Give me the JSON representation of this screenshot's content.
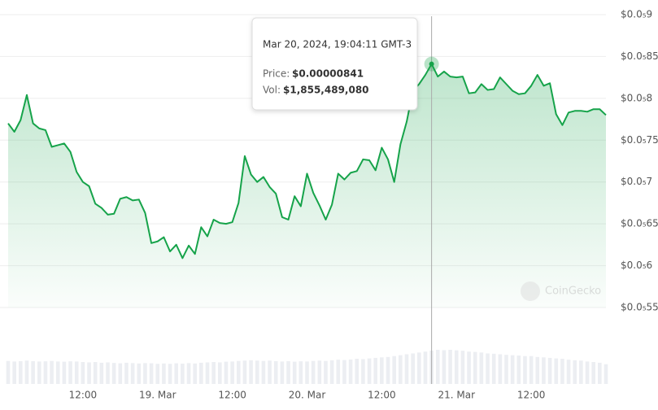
{
  "chart_data": {
    "type": "line",
    "color": "#16a34a",
    "categories": [
      null,
      null,
      null,
      null,
      null,
      null,
      null,
      null,
      null,
      null,
      null,
      null,
      "12:00",
      null,
      null,
      null,
      null,
      null,
      null,
      null,
      null,
      null,
      null,
      null,
      "19. Mar",
      null,
      null,
      null,
      null,
      null,
      null,
      null,
      null,
      null,
      null,
      null,
      "12:00",
      null,
      null,
      null,
      null,
      null,
      null,
      null,
      null,
      null,
      null,
      null,
      "20. Mar",
      null,
      null,
      null,
      null,
      null,
      null,
      null,
      null,
      null,
      null,
      null,
      "12:00",
      null,
      null,
      null,
      null,
      null,
      null,
      null,
      null,
      null,
      null,
      null,
      "21. Mar",
      null,
      null,
      null,
      null,
      null,
      null,
      null,
      null,
      null,
      null,
      null,
      "12:00",
      null,
      null,
      null,
      null,
      null,
      null,
      null,
      null,
      null,
      null,
      null,
      null
    ],
    "values": [
      7.7e-06,
      7.6e-06,
      7.74e-06,
      8.04e-06,
      7.7e-06,
      7.64e-06,
      7.62e-06,
      7.42e-06,
      7.44e-06,
      7.46e-06,
      7.36e-06,
      7.12e-06,
      7e-06,
      6.95e-06,
      6.74e-06,
      6.69e-06,
      6.61e-06,
      6.62e-06,
      6.8e-06,
      6.82e-06,
      6.78e-06,
      6.79e-06,
      6.63e-06,
      6.27e-06,
      6.29e-06,
      6.34e-06,
      6.17e-06,
      6.25e-06,
      6.09e-06,
      6.24e-06,
      6.14e-06,
      6.46e-06,
      6.35e-06,
      6.55e-06,
      6.51e-06,
      6.5e-06,
      6.52e-06,
      6.75e-06,
      7.31e-06,
      7.09e-06,
      7e-06,
      7.06e-06,
      6.94e-06,
      6.86e-06,
      6.58e-06,
      6.55e-06,
      6.83e-06,
      6.71e-06,
      7.1e-06,
      6.87e-06,
      6.72e-06,
      6.55e-06,
      6.73e-06,
      7.1e-06,
      7.03e-06,
      7.11e-06,
      7.13e-06,
      7.27e-06,
      7.26e-06,
      7.14e-06,
      7.41e-06,
      7.27e-06,
      7e-06,
      7.45e-06,
      7.72e-06,
      8.09e-06,
      8.17e-06,
      8.28e-06,
      8.41e-06,
      8.26e-06,
      8.32e-06,
      8.26e-06,
      8.25e-06,
      8.26e-06,
      8.06e-06,
      8.07e-06,
      8.17e-06,
      8.1e-06,
      8.11e-06,
      8.25e-06,
      8.17e-06,
      8.09e-06,
      8.05e-06,
      8.06e-06,
      8.15e-06,
      8.28e-06,
      8.15e-06,
      8.18e-06,
      7.81e-06,
      7.68e-06,
      7.83e-06,
      7.85e-06,
      7.85e-06,
      7.84e-06,
      7.87e-06,
      7.87e-06,
      7.8e-06
    ],
    "volumes": [
      1280000000.0,
      1250000000.0,
      1270000000.0,
      1300000000.0,
      1270000000.0,
      1250000000.0,
      1260000000.0,
      1280000000.0,
      1250000000.0,
      1240000000.0,
      1260000000.0,
      1250000000.0,
      1220000000.0,
      1200000000.0,
      1220000000.0,
      1180000000.0,
      1200000000.0,
      1170000000.0,
      1150000000.0,
      1180000000.0,
      1160000000.0,
      1140000000.0,
      1160000000.0,
      1150000000.0,
      1120000000.0,
      1140000000.0,
      1120000000.0,
      1150000000.0,
      1130000000.0,
      1160000000.0,
      1140000000.0,
      1180000000.0,
      1200000000.0,
      1220000000.0,
      1200000000.0,
      1240000000.0,
      1250000000.0,
      1280000000.0,
      1300000000.0,
      1320000000.0,
      1300000000.0,
      1280000000.0,
      1300000000.0,
      1270000000.0,
      1250000000.0,
      1270000000.0,
      1240000000.0,
      1260000000.0,
      1250000000.0,
      1280000000.0,
      1300000000.0,
      1280000000.0,
      1320000000.0,
      1350000000.0,
      1330000000.0,
      1360000000.0,
      1400000000.0,
      1380000000.0,
      1420000000.0,
      1450000000.0,
      1480000000.0,
      1500000000.0,
      1550000000.0,
      1600000000.0,
      1650000000.0,
      1700000000.0,
      1750000000.0,
      1800000000.0,
      1855489080,
      1900000000.0,
      1880000000.0,
      1900000000.0,
      1870000000.0,
      1850000000.0,
      1800000000.0,
      1780000000.0,
      1750000000.0,
      1700000000.0,
      1680000000.0,
      1650000000.0,
      1620000000.0,
      1600000000.0,
      1580000000.0,
      1550000000.0,
      1550000000.0,
      1500000000.0,
      1480000000.0,
      1450000000.0,
      1420000000.0,
      1400000000.0,
      1350000000.0,
      1320000000.0,
      1300000000.0,
      1250000000.0,
      1220000000.0,
      1180000000.0,
      1100000000.0
    ],
    "ylim": [
      5.5e-06,
      9e-06
    ],
    "yticks": [
      {
        "value": 9e-06,
        "label": "$0.0₅9"
      },
      {
        "value": 8.5e-06,
        "label": "$0.0₅85"
      },
      {
        "value": 8e-06,
        "label": "$0.0₅8"
      },
      {
        "value": 7.5e-06,
        "label": "$0.0₅75"
      },
      {
        "value": 7e-06,
        "label": "$0.0₅7"
      },
      {
        "value": 6.5e-06,
        "label": "$0.0₅65"
      },
      {
        "value": 6e-06,
        "label": "$0.0₅6"
      },
      {
        "value": 5.5e-06,
        "label": "$0.0₅55"
      }
    ],
    "grid": true,
    "tooltip": {
      "title": "Mar 20, 2024, 19:04:11 GMT-3",
      "price_name": "Price:",
      "price": "$0.00000841",
      "vol_name": "Vol:",
      "vol": "$1,855,489,080"
    },
    "watermark": "CoinGecko"
  }
}
